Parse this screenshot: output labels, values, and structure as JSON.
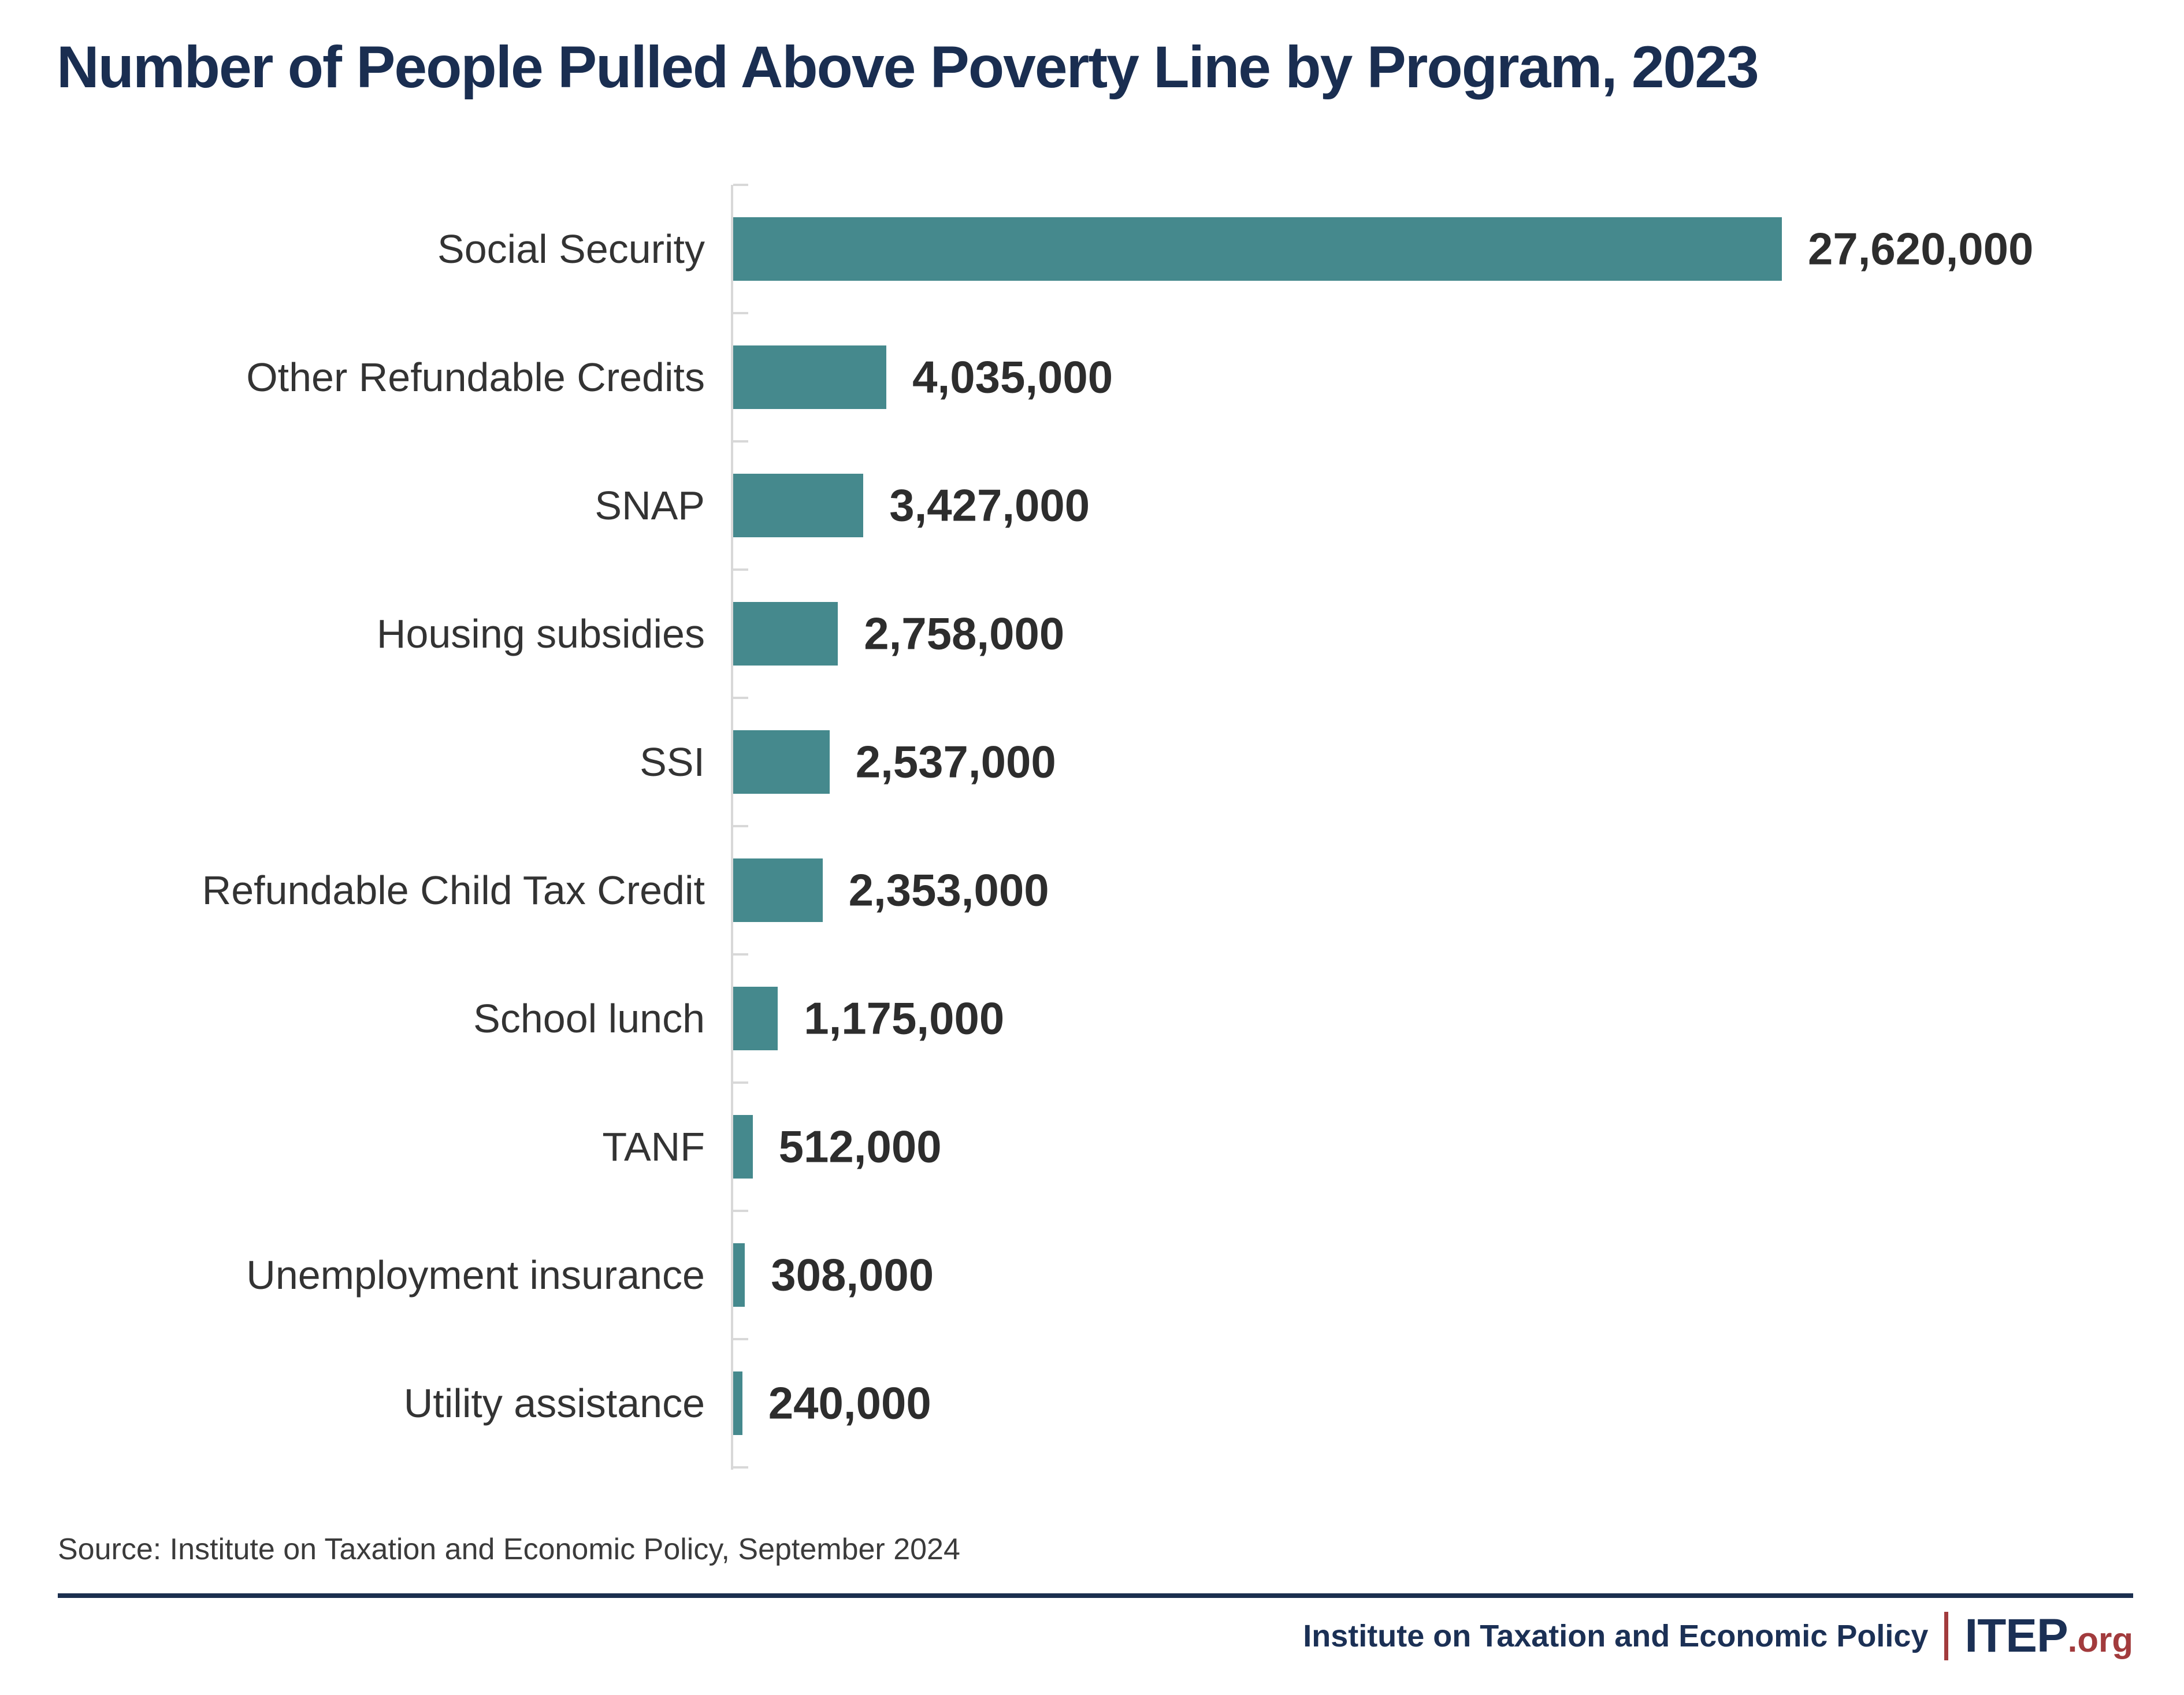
{
  "title": "Number of People Pulled Above Poverty Line by Program, 2023",
  "source": "Source: Institute on Taxation and Economic Policy, September 2024",
  "footer": {
    "org": "Institute on Taxation and Economic Policy",
    "logo_name": "ITEP",
    "logo_tld": ".org"
  },
  "colors": {
    "bar": "#45898d",
    "title": "#1a2e51",
    "category_label": "#333333",
    "value_label": "#2d2d2d",
    "axis": "#d8d8d8",
    "source_text": "#3b3b3b",
    "rule": "#1b2f4f",
    "footer_navy": "#1b3055",
    "footer_red": "#a23b3d"
  },
  "chart_data": {
    "type": "bar",
    "orientation": "horizontal",
    "title": "Number of People Pulled Above Poverty Line by Program, 2023",
    "xlabel": "",
    "ylabel": "",
    "xlim": [
      0,
      27620000
    ],
    "grid": false,
    "legend": false,
    "categories": [
      "Social Security",
      "Other Refundable Credits",
      "SNAP",
      "Housing subsidies",
      "SSI",
      "Refundable Child Tax Credit",
      "School lunch",
      "TANF",
      "Unemployment insurance",
      "Utility assistance"
    ],
    "values": [
      27620000,
      4035000,
      3427000,
      2758000,
      2537000,
      2353000,
      1175000,
      512000,
      308000,
      240000
    ],
    "value_labels": [
      "27,620,000",
      "4,035,000",
      "3,427,000",
      "2,758,000",
      "2,537,000",
      "2,353,000",
      "1,175,000",
      "512,000",
      "308,000",
      "240,000"
    ]
  }
}
